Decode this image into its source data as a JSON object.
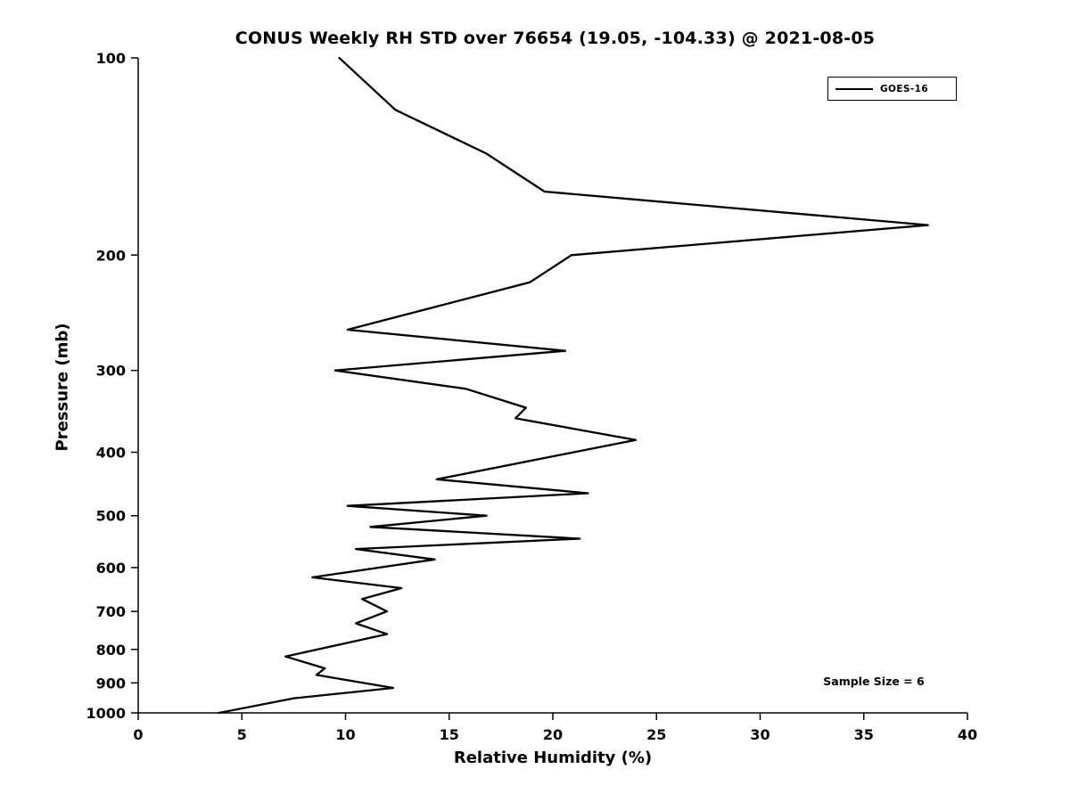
{
  "chart_data": {
    "type": "line",
    "title": "CONUS Weekly RH STD over 76654 (19.05, -104.33) @ 2021-08-05",
    "xlabel": "Relative Humidity (%)",
    "ylabel": "Pressure (mb)",
    "xlim": [
      0,
      40
    ],
    "x_ticks": [
      0,
      5,
      10,
      15,
      20,
      25,
      30,
      35,
      40
    ],
    "y_scale": "log",
    "y_axis_reversed": true,
    "ylim": [
      100,
      1000
    ],
    "y_ticks": [
      100,
      200,
      300,
      400,
      500,
      600,
      700,
      800,
      900,
      1000
    ],
    "grid": false,
    "line_color": "#000000",
    "legend": {
      "position": "top-right",
      "entries": [
        {
          "label": "GOES-16",
          "color": "#000000"
        }
      ]
    },
    "annotation": "Sample Size = 6",
    "series": [
      {
        "name": "GOES-16",
        "color": "#000000",
        "pressure_mb": [
          100,
          120,
          140,
          160,
          180,
          200,
          220,
          260,
          280,
          300,
          320,
          342,
          355,
          383,
          440,
          462,
          483,
          500,
          520,
          542,
          562,
          583,
          621,
          645,
          670,
          700,
          730,
          758,
          820,
          855,
          875,
          916,
          950,
          1000
        ],
        "rh_std_percent": [
          9.7,
          12.4,
          16.8,
          19.6,
          38.1,
          20.9,
          18.9,
          10.1,
          20.6,
          9.5,
          15.8,
          18.7,
          18.2,
          24.0,
          14.4,
          21.7,
          10.1,
          16.8,
          11.2,
          21.3,
          10.5,
          14.3,
          8.4,
          12.7,
          10.8,
          12.0,
          10.5,
          12.0,
          7.1,
          9.0,
          8.6,
          12.3,
          7.5,
          3.9
        ]
      }
    ]
  }
}
